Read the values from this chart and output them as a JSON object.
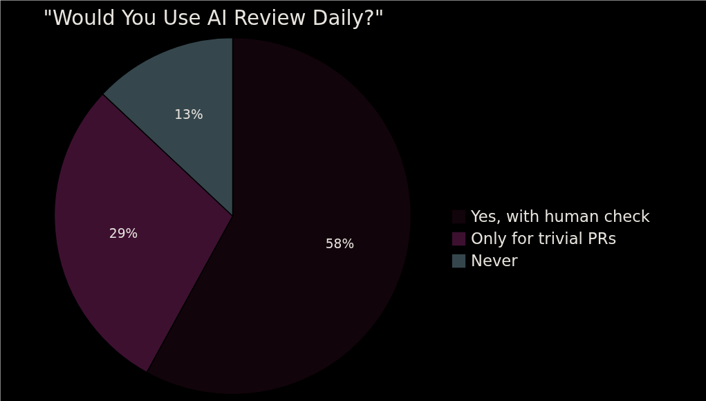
{
  "chart_data": {
    "type": "pie",
    "title": "\"Would You Use AI Review Daily?\"",
    "categories": [
      "Yes, with human check",
      "Only for trivial PRs",
      "Never"
    ],
    "values": [
      58,
      29,
      13
    ],
    "value_labels": [
      "58%",
      "29%",
      "13%"
    ],
    "colors": [
      "#12040b",
      "#3d1030",
      "#35474d"
    ],
    "legend": "right"
  }
}
